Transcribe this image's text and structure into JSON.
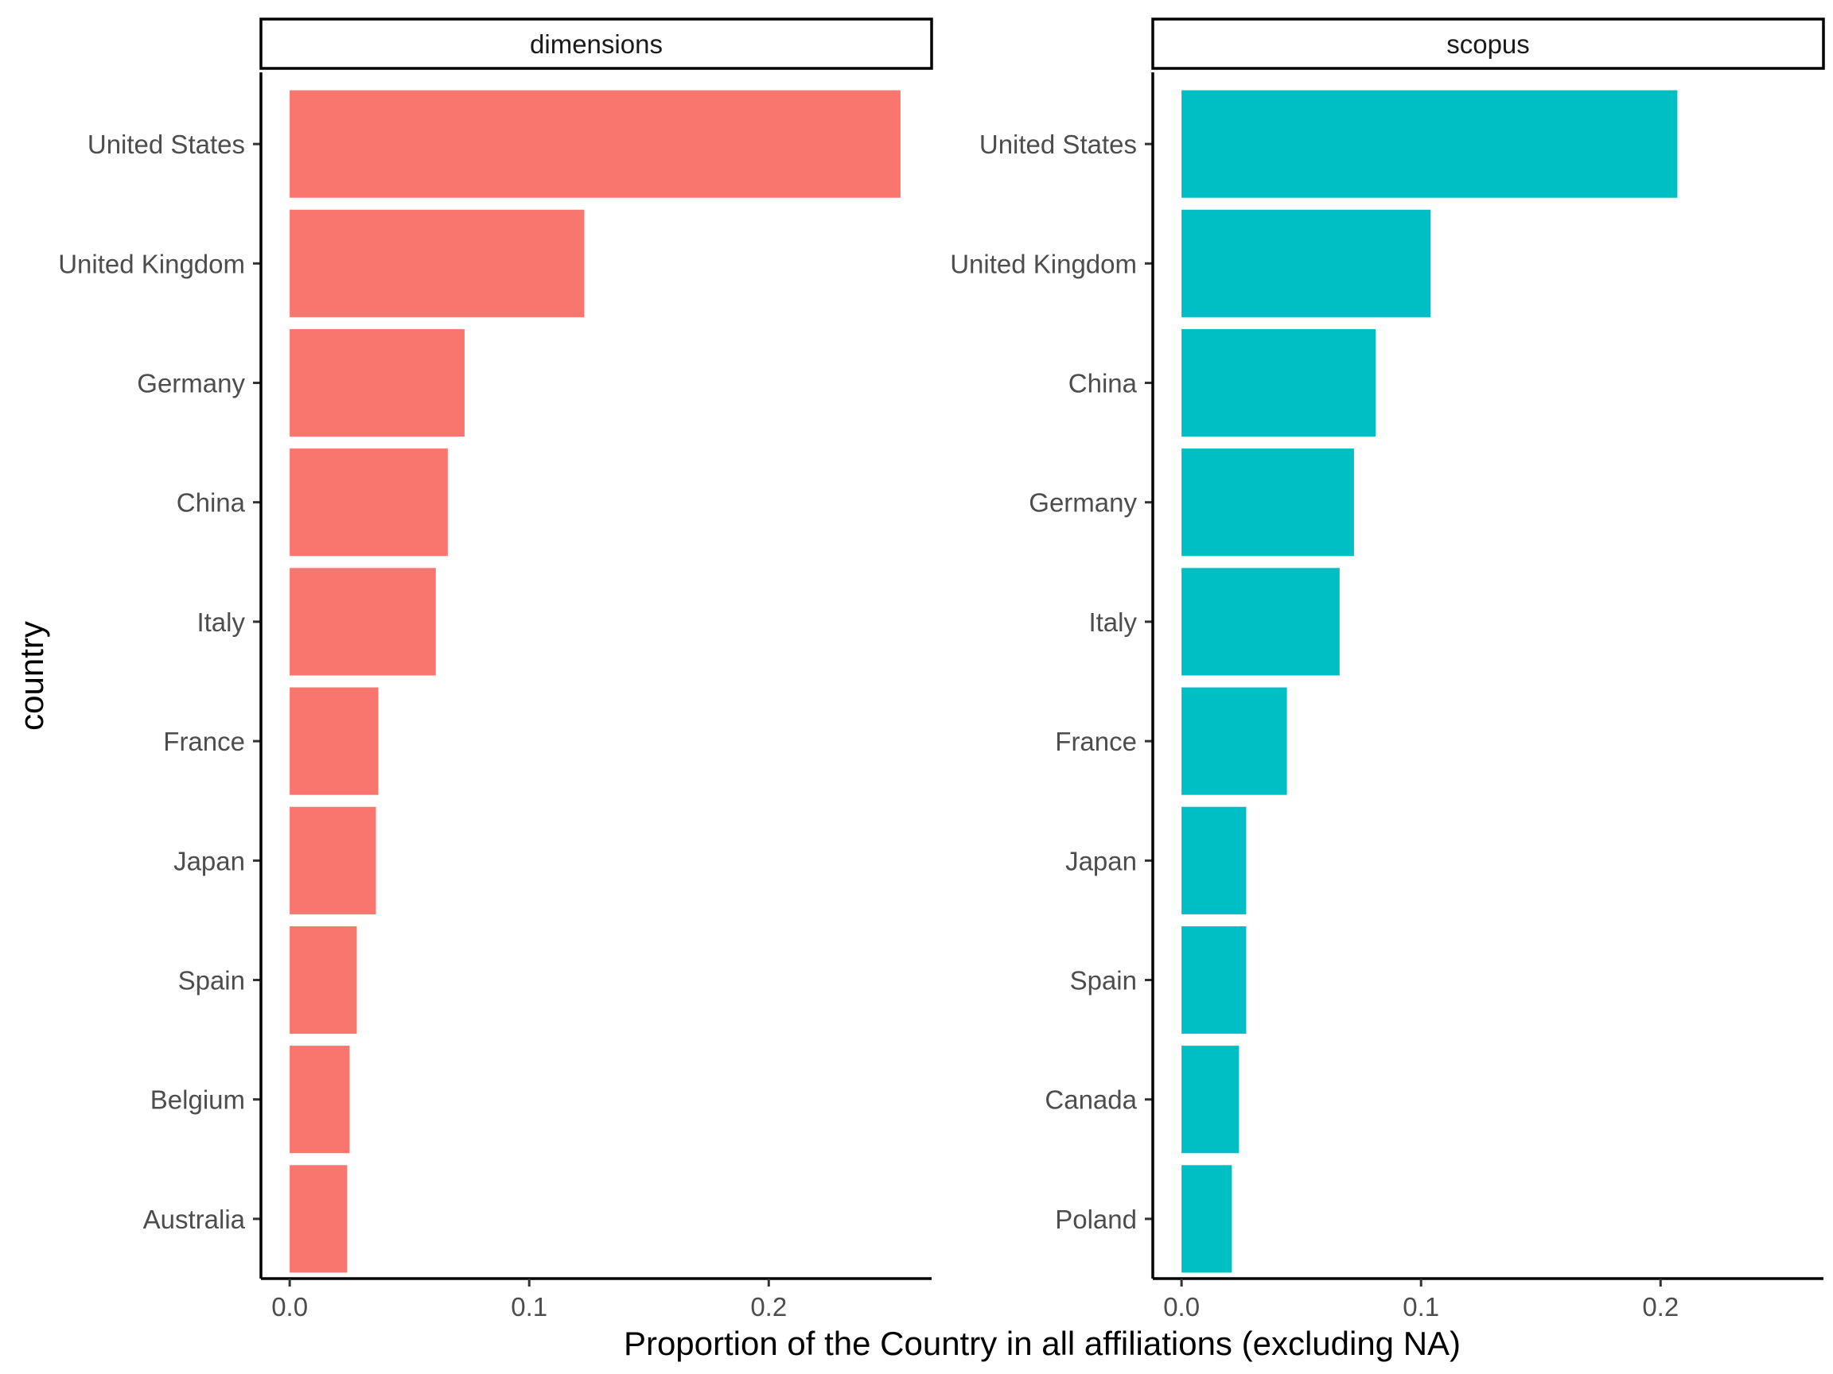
{
  "chart_data": {
    "type": "bar",
    "orientation": "horizontal",
    "xlabel": "Proportion of the Country in all affiliations (excluding NA)",
    "ylabel": "country",
    "xlim": [
      -0.012,
      0.268
    ],
    "xticks": [
      0.0,
      0.1,
      0.2
    ],
    "xtick_labels": [
      "0.0",
      "0.1",
      "0.2"
    ],
    "grid": false,
    "legend": "none",
    "panels": [
      {
        "name": "dimensions",
        "color": "#F8766D",
        "categories": [
          "United States",
          "United Kingdom",
          "Germany",
          "China",
          "Italy",
          "France",
          "Japan",
          "Spain",
          "Belgium",
          "Australia"
        ],
        "values": [
          0.255,
          0.123,
          0.073,
          0.066,
          0.061,
          0.037,
          0.036,
          0.028,
          0.025,
          0.024
        ]
      },
      {
        "name": "scopus",
        "color": "#00BFC4",
        "categories": [
          "United States",
          "United Kingdom",
          "China",
          "Germany",
          "Italy",
          "France",
          "Japan",
          "Spain",
          "Canada",
          "Poland"
        ],
        "values": [
          0.207,
          0.104,
          0.081,
          0.072,
          0.066,
          0.044,
          0.027,
          0.027,
          0.024,
          0.021
        ]
      }
    ]
  }
}
